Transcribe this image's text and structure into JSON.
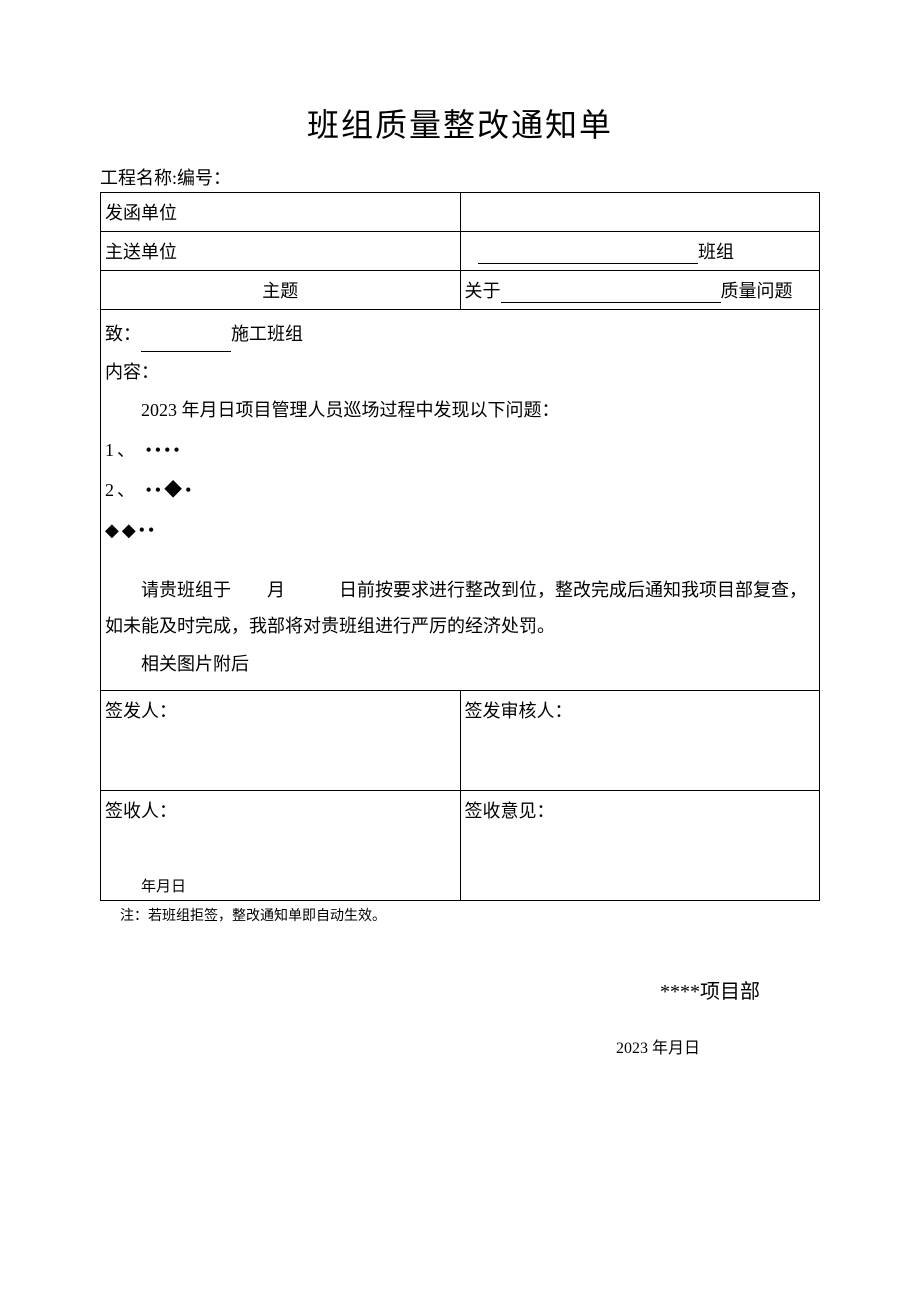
{
  "title": "班组质量整改通知单",
  "header": {
    "project_label": "工程名称:",
    "number_label": "编号："
  },
  "rows": {
    "sender_label": "发函单位",
    "sender_value": "",
    "recipient_label": "主送单位",
    "recipient_suffix": "班组",
    "subject_label": "主题",
    "subject_prefix": "关于",
    "subject_suffix": "质量问题"
  },
  "body": {
    "to_prefix": "致：",
    "to_suffix": "施工班组",
    "content_label": "内容：",
    "intro": "2023 年月日项目管理人员巡场过程中发现以下问题：",
    "items": [
      "1、 ••••",
      "2、 ••◆•"
    ],
    "extra_dots": "◆◆••",
    "deadline_text": "请贵班组于　　月　　　日前按要求进行整改到位，整改完成后通知我项目部复查，如未能及时完成，我部将对贵班组进行严厉的经济处罚。",
    "attachment_text": "相关图片附后"
  },
  "signatures": {
    "issuer_label": "签发人：",
    "reviewer_label": "签发审核人：",
    "receiver_label": "签收人：",
    "opinion_label": "签收意见：",
    "receive_date": "年月日"
  },
  "note": "注：若班组拒签，整改通知单即自动生效。",
  "footer": {
    "org": "****项目部",
    "date": "2023 年月日"
  }
}
